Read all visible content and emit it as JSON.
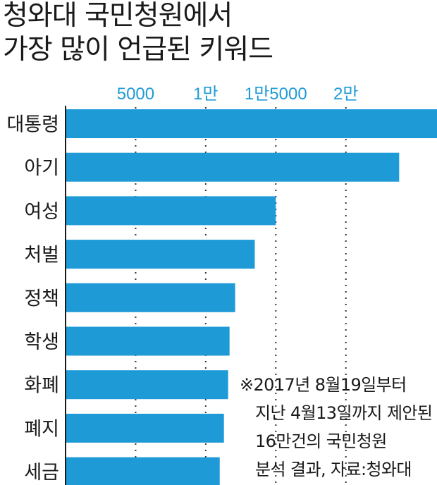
{
  "title": {
    "line1": "청와대 국민청원에서",
    "line2": "가장 많이 언급된 키워드"
  },
  "note": {
    "line1": "※2017년 8월19일부터",
    "line2": "지난 4월13일까지 제안된",
    "line3": "16만건의 국민청원",
    "line4": "분석 결과, 자료:청와대"
  },
  "chart_data": {
    "type": "bar",
    "orientation": "horizontal",
    "categories": [
      "대통령",
      "아기",
      "여성",
      "처벌",
      "정책",
      "학생",
      "화폐",
      "폐지",
      "세금"
    ],
    "values": [
      26500,
      23800,
      15000,
      13500,
      12100,
      11700,
      11600,
      11300,
      11000
    ],
    "xlim": [
      0,
      26500
    ],
    "x_ticks": [
      5000,
      10000,
      15000,
      20000
    ],
    "x_tick_labels": [
      "5000",
      "1만",
      "1만5000",
      "2만"
    ],
    "axis_position": "top",
    "grid": "vertical dotted",
    "colors": {
      "bar": "#1e9bd7",
      "tick_label": "#1e9bd7",
      "axis": "#1a1a1a",
      "grid": "#333333"
    }
  }
}
